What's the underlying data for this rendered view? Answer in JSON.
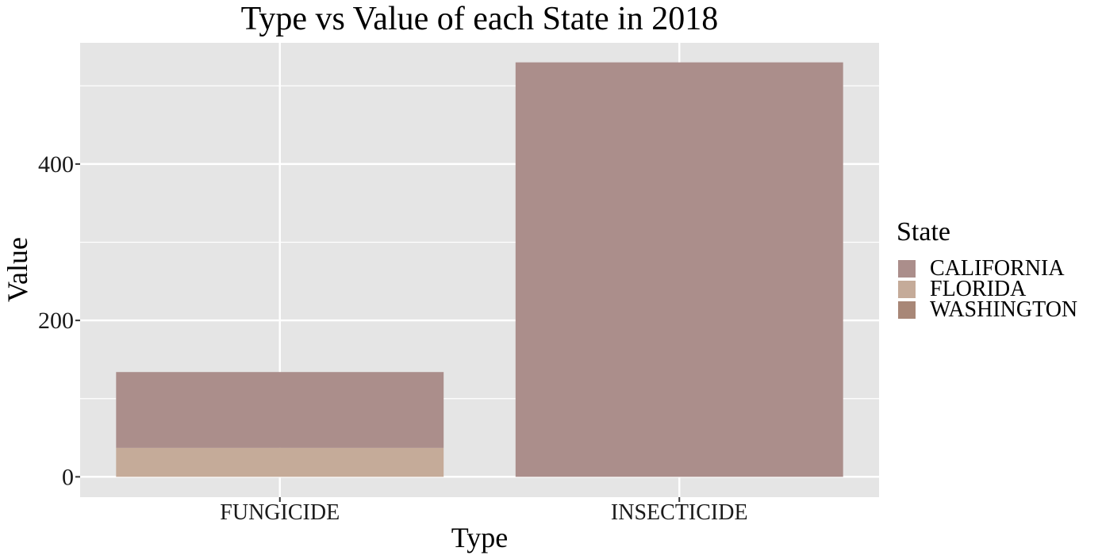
{
  "chart_data": {
    "type": "bar",
    "stacked": true,
    "title": "Type vs Value of each State in 2018",
    "xlabel": "Type",
    "ylabel": "Value",
    "categories": [
      "FUNGICIDE",
      "INSECTICIDE"
    ],
    "ylim": [
      -26,
      555
    ],
    "yticks": [
      0,
      200,
      400
    ],
    "ytick_labels": [
      "0",
      "200",
      "400"
    ],
    "grid": true,
    "legend": {
      "title": "State",
      "position": "right"
    },
    "series": [
      {
        "name": "CALIFORNIA",
        "color": "#ab8e8b",
        "values": [
          97,
          530
        ]
      },
      {
        "name": "FLORIDA",
        "color": "#c5ab99",
        "values": [
          37,
          0
        ]
      },
      {
        "name": "WASHINGTON",
        "color": "#a88777",
        "values": [
          0,
          0
        ]
      }
    ]
  }
}
